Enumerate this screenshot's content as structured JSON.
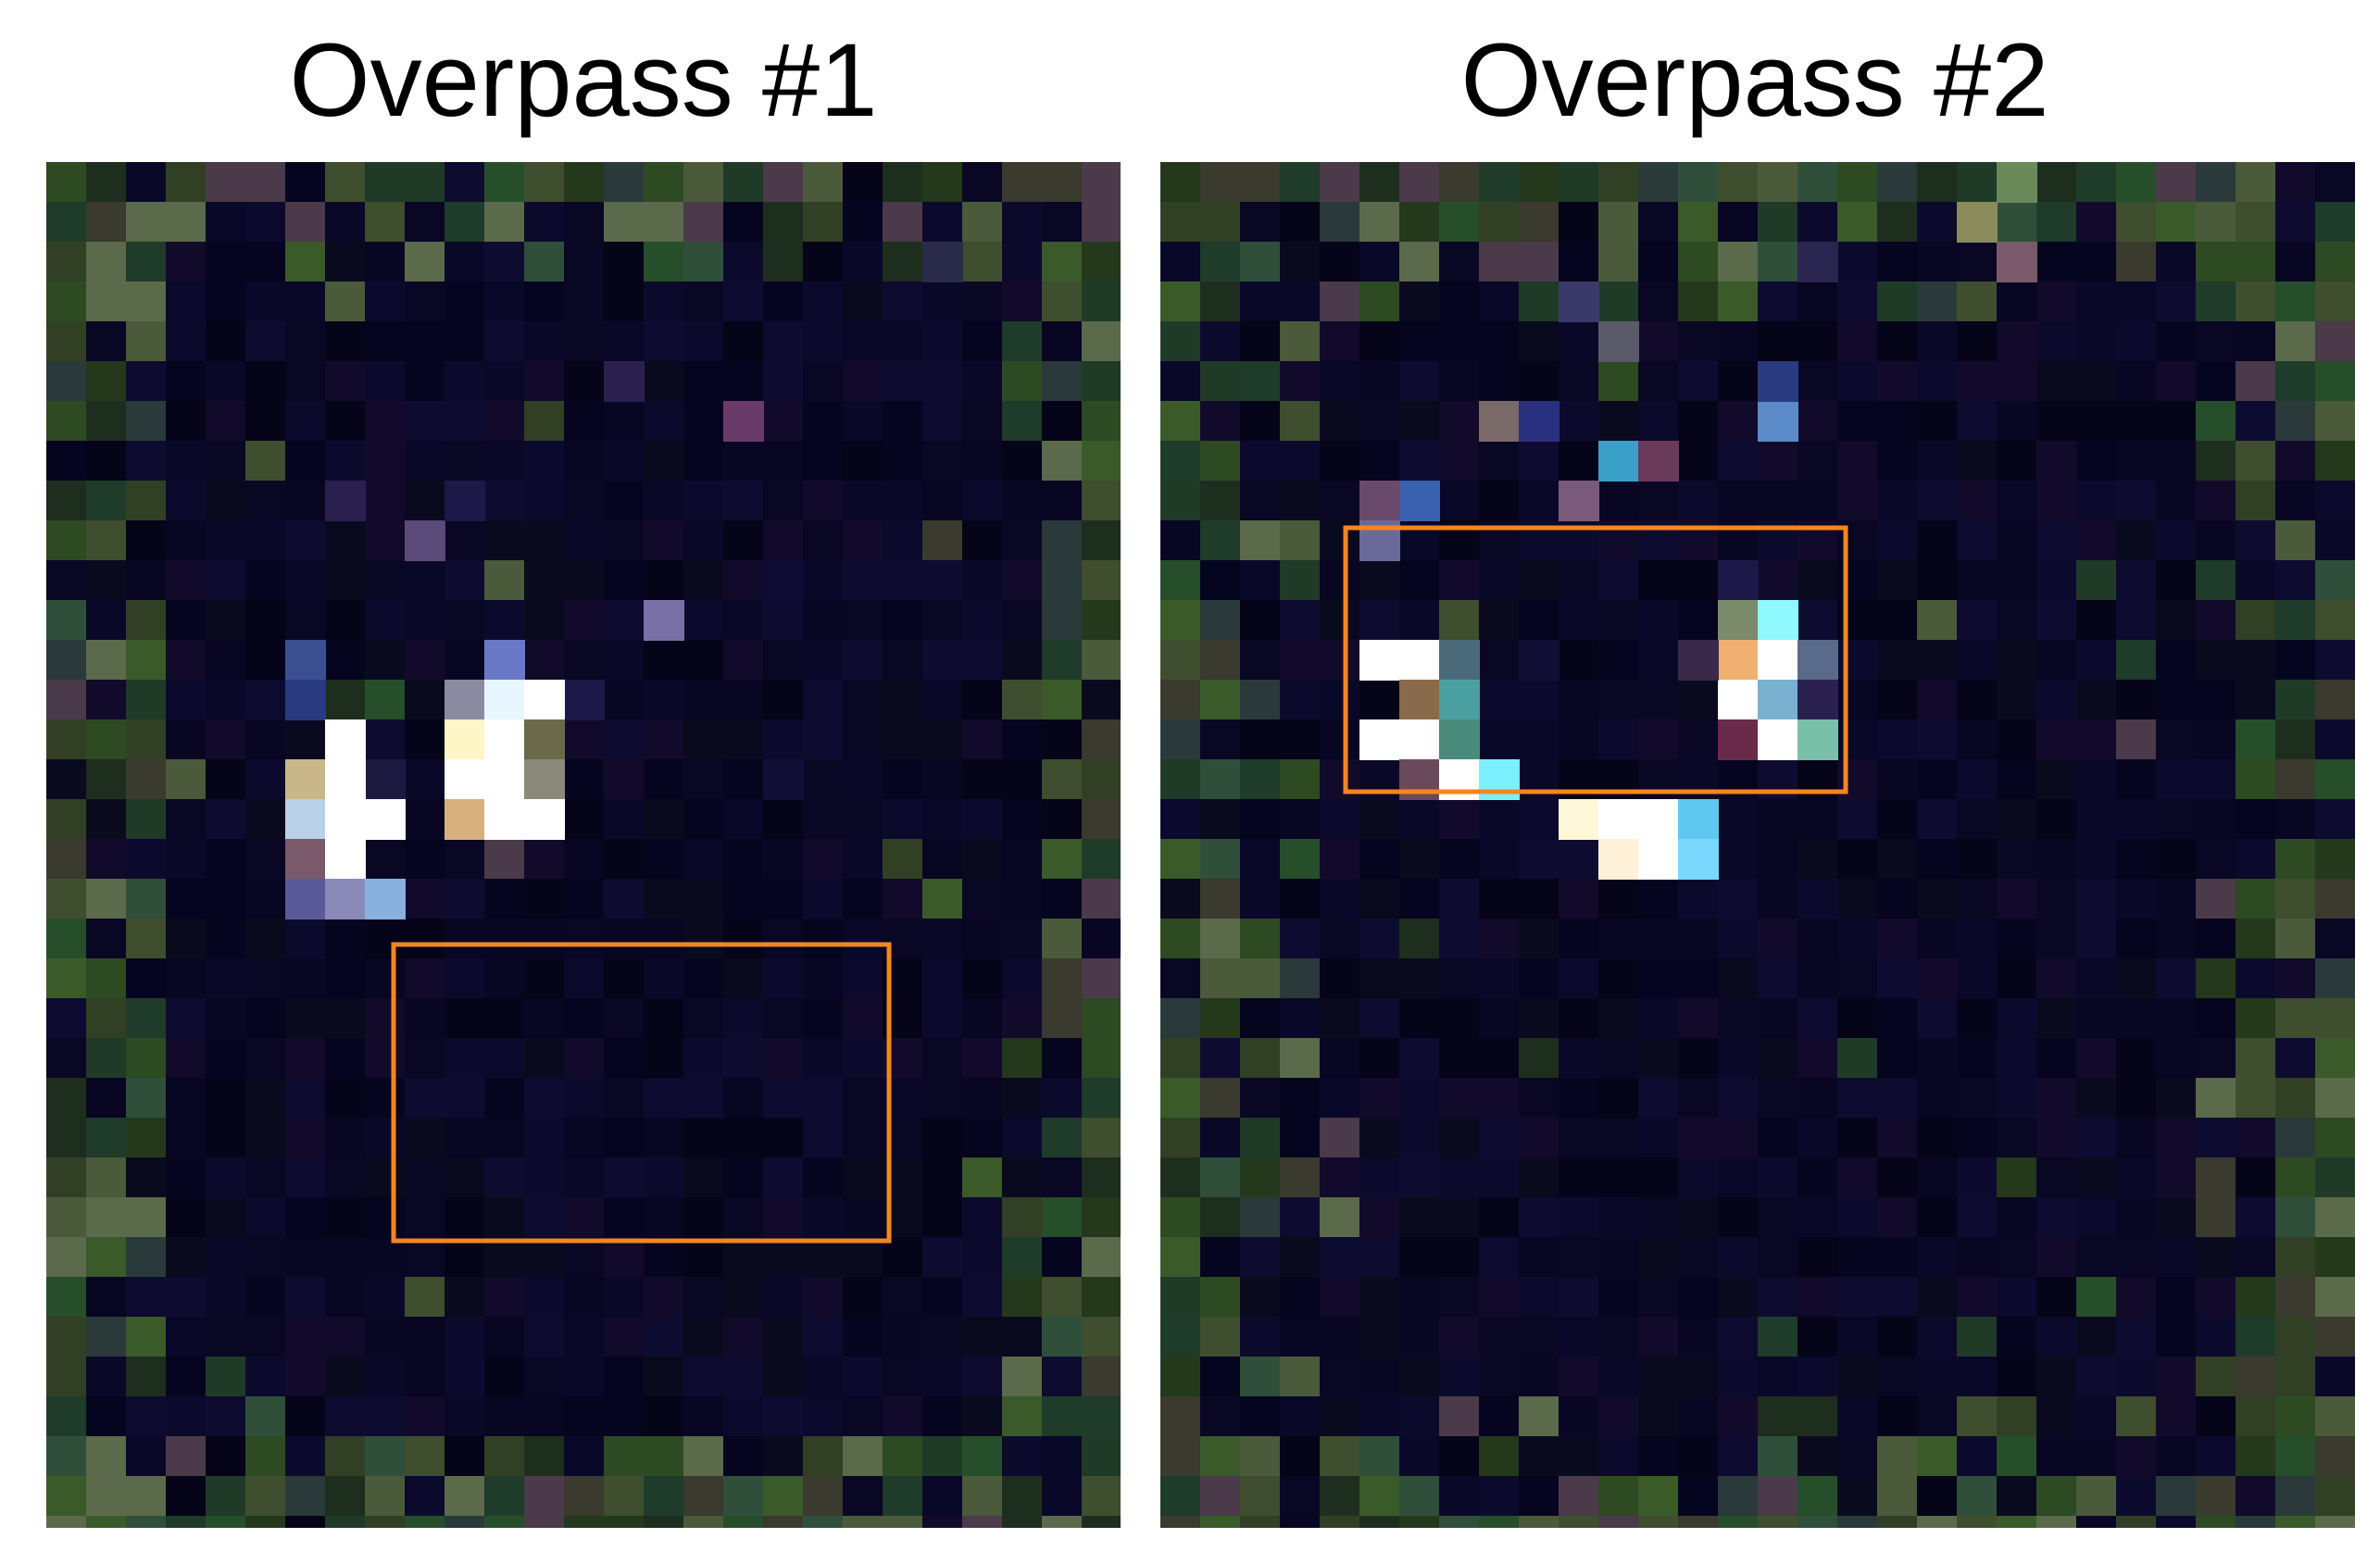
{
  "figure": {
    "panels": [
      {
        "title": "Overpass #1",
        "highlight_color": "#f5861f"
      },
      {
        "title": "Overpass #2",
        "highlight_color": "#f5861f"
      }
    ]
  }
}
